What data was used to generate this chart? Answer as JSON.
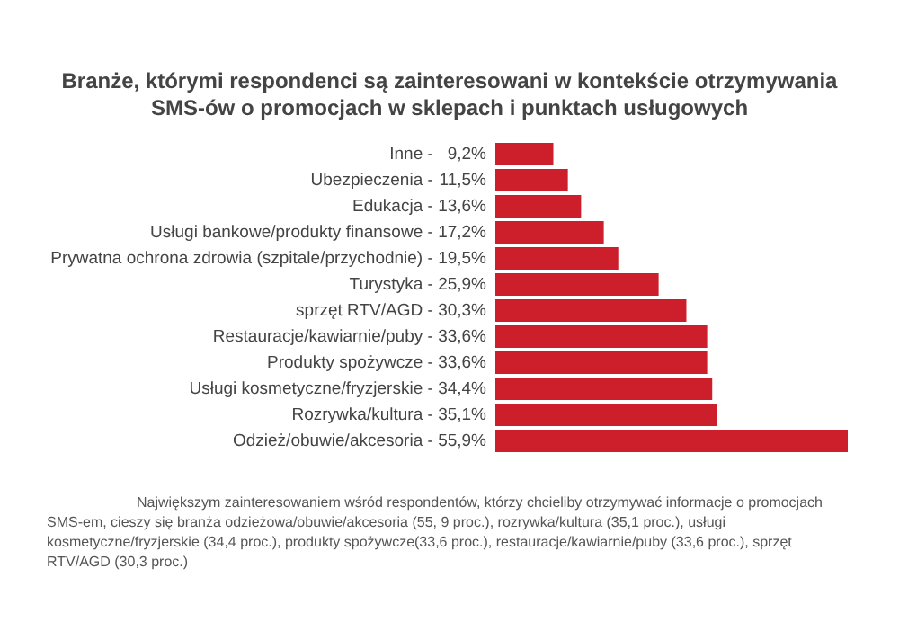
{
  "chart_data": {
    "type": "bar",
    "orientation": "horizontal",
    "title": "Branże, którymi respondenci są zainteresowani w kontekście otrzymywania SMS-ów o promocjach w sklepach i punktach usługowych",
    "categories": [
      "Inne -",
      "Ubezpieczenia -",
      "Edukacja -",
      "Usługi bankowe/produkty finansowe -",
      "Prywatna ochrona zdrowia (szpitale/przychodnie) -",
      "Turystyka -",
      "sprzęt RTV/AGD -",
      "Restauracje/kawiarnie/puby -",
      "Produkty spożywcze -",
      "Usługi kosmetyczne/fryzjerskie -",
      "Rozrywka/kultura -",
      "Odzież/obuwie/akcesoria -"
    ],
    "value_labels": [
      "9,2%",
      "11,5%",
      "13,6%",
      "17,2%",
      "19,5%",
      "25,9%",
      "30,3%",
      "33,6%",
      "33,6%",
      "34,4%",
      "35,1%",
      "55,9%"
    ],
    "values": [
      9.2,
      11.5,
      13.6,
      17.2,
      19.5,
      25.9,
      30.3,
      33.6,
      33.6,
      34.4,
      35.1,
      55.9
    ],
    "color": "#cc1f2b",
    "annotations": [
      "Największym zainteresowaniem wśród respondentów, którzy chcieliby otrzymywać informacje o promocjach SMS-em, cieszy się branża odzieżowa/obuwie/akcesoria (55, 9 proc.), rozrywka/kultura (35,1 proc.), usługi kosmetyczne/fryzjerskie (34,4 proc.), produkty spożywcze(33,6 proc.), restauracje/kawiarnie/puby (33,6 proc.), sprzęt RTV/AGD (30,3 proc.)"
    ]
  }
}
